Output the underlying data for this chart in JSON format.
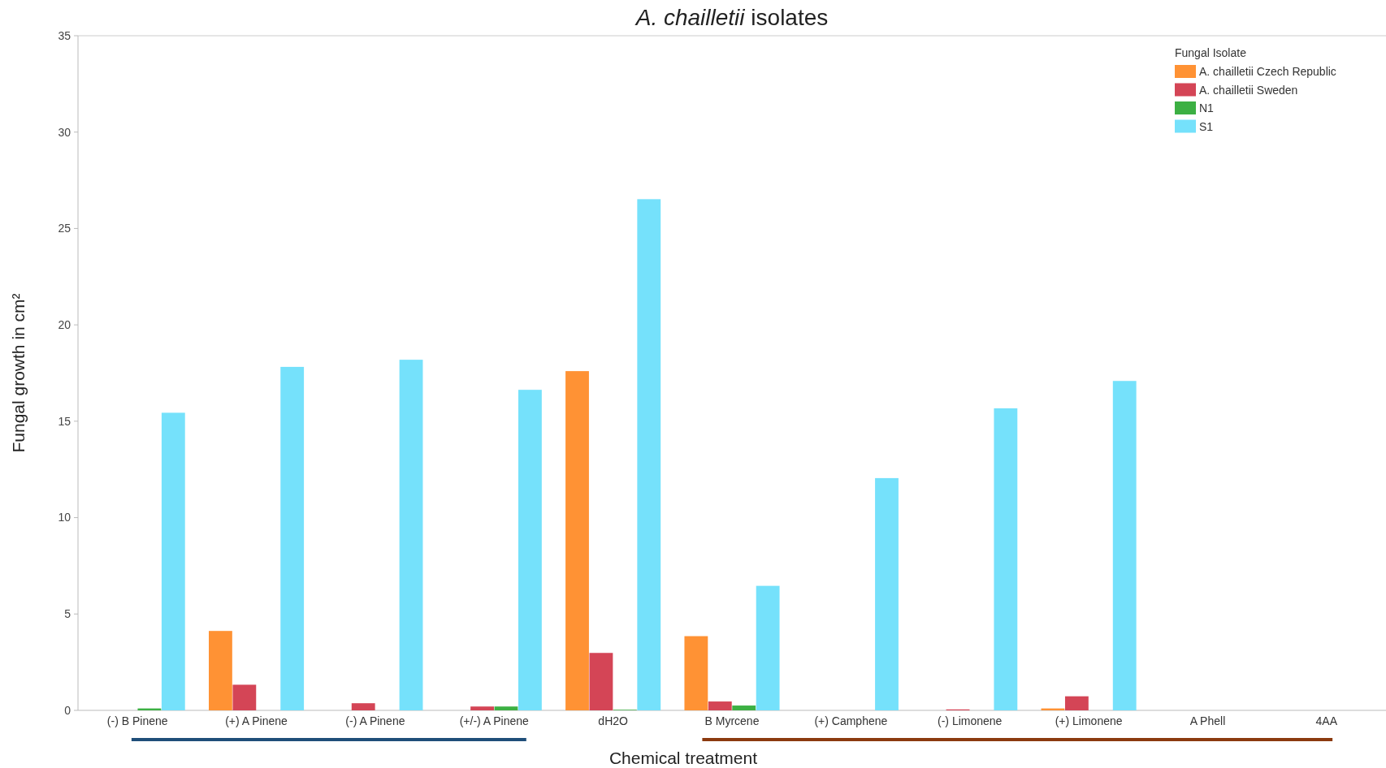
{
  "chart_data": {
    "type": "bar",
    "title": "A. chailletii isolates",
    "xlabel": "Chemical treatment",
    "ylabel": "Fungal growth in cm²",
    "legend_title": "Fungal Isolate",
    "categories": [
      "(-) B Pinene",
      "(+) A Pinene",
      "(-) A Pinene",
      "(+/-) A Pinene",
      "dH2O",
      "B Myrcene",
      "(+) Camphene",
      "(-) Limonene",
      "(+) Limonene",
      "A Phell",
      "4AA"
    ],
    "series": [
      {
        "name": "A. chailletii Czech Republic",
        "color": "#ff9234",
        "values": [
          0,
          4.12,
          0,
          0,
          17.6,
          3.85,
          0,
          0,
          0.1,
          0,
          0
        ]
      },
      {
        "name": "A. chailletii Sweden",
        "color": "#d44556",
        "values": [
          0,
          1.33,
          0.37,
          0.2,
          2.98,
          0.46,
          0,
          0.05,
          0.73,
          0,
          0
        ]
      },
      {
        "name": "N1",
        "color": "#3cb043",
        "values": [
          0.1,
          0,
          0,
          0.2,
          0.03,
          0.25,
          0,
          0,
          0,
          0,
          0
        ]
      },
      {
        "name": "S1",
        "color": "#75e1fb",
        "values": [
          15.44,
          17.82,
          18.19,
          16.63,
          26.52,
          6.46,
          12.05,
          15.67,
          17.09,
          0,
          0
        ]
      }
    ],
    "ylim": [
      0,
      35
    ],
    "yticks": [
      0,
      5,
      10,
      15,
      20,
      25,
      30,
      35
    ],
    "grid": false,
    "legend": "top right"
  }
}
